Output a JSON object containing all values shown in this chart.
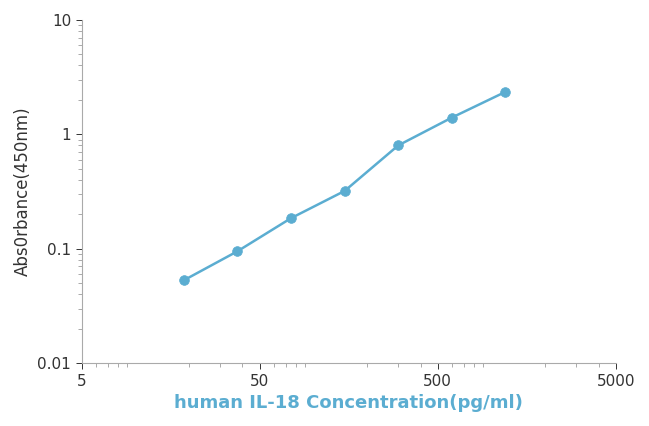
{
  "x": [
    18.75,
    37.5,
    75,
    150,
    300,
    600,
    1200
  ],
  "y": [
    0.053,
    0.095,
    0.185,
    0.32,
    0.8,
    1.4,
    2.35
  ],
  "line_color": "#5BADD1",
  "marker_color": "#5BADD1",
  "marker_size": 7,
  "line_width": 1.8,
  "xlabel": "human IL-18 Concentration(pg/ml)",
  "ylabel": "Abs0rbance(450nm)",
  "xlim": [
    5,
    5000
  ],
  "ylim": [
    0.01,
    10
  ],
  "xlabel_fontsize": 13,
  "ylabel_fontsize": 12,
  "xlabel_color": "#5BADD1",
  "ylabel_color": "#333333",
  "tick_label_fontsize": 11,
  "x_ticks": [
    5,
    50,
    500,
    5000
  ],
  "x_tick_labels": [
    "5",
    "50",
    "500",
    "5000"
  ],
  "y_ticks": [
    0.01,
    0.1,
    1,
    10
  ],
  "y_tick_labels": [
    "0.01",
    "0.1",
    "1",
    "10"
  ],
  "background_color": "#ffffff"
}
